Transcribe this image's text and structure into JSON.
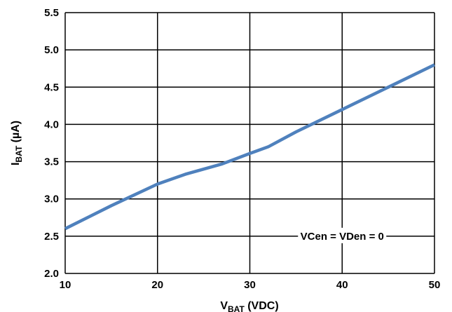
{
  "chart_data": {
    "type": "line",
    "title": "",
    "xlabel": {
      "main": "V",
      "sub": "BAT",
      "rest": " (VDC)"
    },
    "ylabel": {
      "main": "I",
      "sub": "BAT",
      "rest": " (µA)"
    },
    "xlim": [
      10,
      50
    ],
    "ylim": [
      2.0,
      5.5
    ],
    "x_ticks": [
      "10",
      "20",
      "30",
      "40",
      "50"
    ],
    "y_ticks": [
      "2.0",
      "2.5",
      "3.0",
      "3.5",
      "4.0",
      "4.5",
      "5.0",
      "5.5"
    ],
    "grid": true,
    "series": [
      {
        "color": "#4f81bd",
        "x": [
          10,
          15,
          20,
          23,
          27,
          30,
          32,
          35,
          40,
          45,
          50
        ],
        "y": [
          2.6,
          2.91,
          3.2,
          3.33,
          3.47,
          3.61,
          3.7,
          3.9,
          4.2,
          4.5,
          4.8
        ]
      }
    ],
    "annotation": {
      "text": "VCen = VDen = 0",
      "x": 40,
      "y": 2.5
    }
  }
}
